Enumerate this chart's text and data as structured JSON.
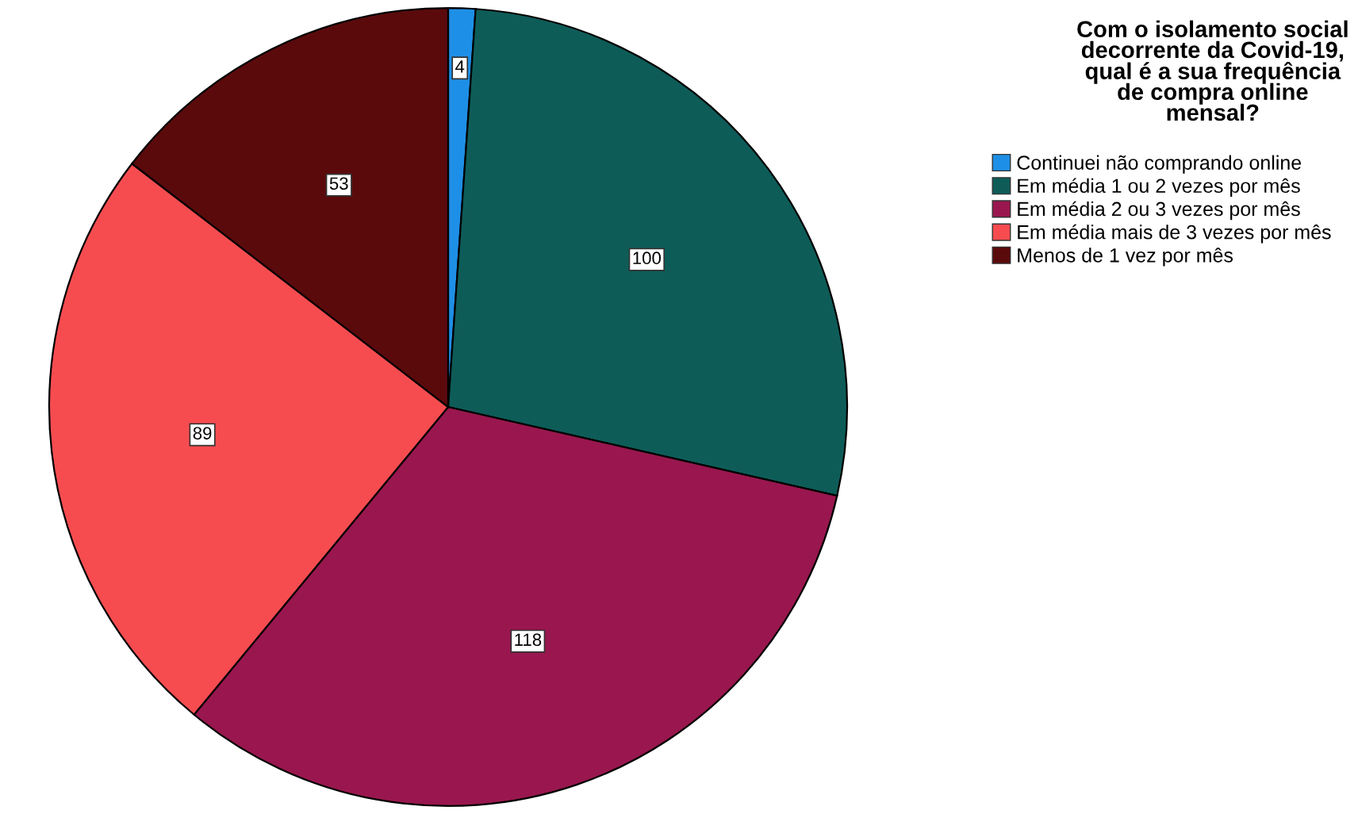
{
  "chart_data": {
    "type": "pie",
    "legend_title": "Com o isolamento social decorrente da Covid-19, qual é a sua frequência de compra online mensal?",
    "categories": [
      "Continuei não comprando online",
      "Em média 1 ou 2 vezes por mês",
      "Em média 2 ou 3 vezes por mês",
      "Em média mais de 3 vezes por mês",
      "Menos de 1 vez por mês"
    ],
    "values": [
      4,
      100,
      118,
      89,
      53
    ],
    "colors": [
      "#1e8fe6",
      "#0e5c58",
      "#99174e",
      "#f64c50",
      "#5b0a0c"
    ],
    "data_labels": true,
    "legend": "top right"
  }
}
